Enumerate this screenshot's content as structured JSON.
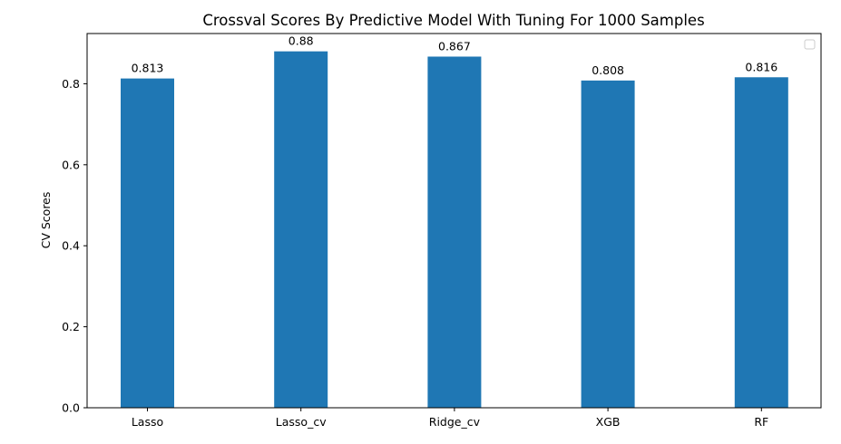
{
  "chart_data": {
    "type": "bar",
    "title": "Crossval Scores By Predictive Model With Tuning For 1000 Samples",
    "xlabel": "",
    "ylabel": "CV Scores",
    "categories": [
      "Lasso",
      "Lasso_cv",
      "Ridge_cv",
      "XGB",
      "RF"
    ],
    "values": [
      0.813,
      0.88,
      0.867,
      0.808,
      0.816
    ],
    "data_labels": [
      "0.813",
      "0.88",
      "0.867",
      "0.808",
      "0.816"
    ],
    "ylim": [
      0,
      0.924
    ],
    "yticks": [
      0.0,
      0.2,
      0.4,
      0.6,
      0.8
    ],
    "ytick_labels": [
      "0.0",
      "0.2",
      "0.4",
      "0.6",
      "0.8"
    ],
    "bar_color": "#1f77b4",
    "grid": false,
    "legend": {
      "placement": "top-right",
      "entries": []
    }
  }
}
